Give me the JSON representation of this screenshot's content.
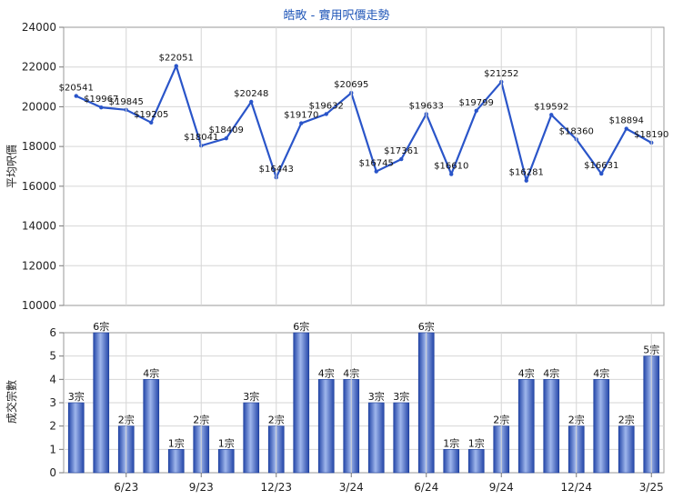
{
  "chart_data": [
    {
      "type": "line",
      "title": "皓畋 - 實用呎價走勢",
      "ylabel": "平均呎價",
      "ylim": [
        10000,
        24000
      ],
      "yticks": [
        10000,
        12000,
        14000,
        16000,
        18000,
        20000,
        22000,
        24000
      ],
      "grid": true,
      "color": "#2a55c9",
      "series": [
        {
          "values": [
            20541,
            19967,
            19845,
            19205,
            22051,
            18041,
            18409,
            20248,
            16443,
            19170,
            19632,
            20695,
            16745,
            17361,
            19633,
            16610,
            19799,
            21252,
            16281,
            19592,
            18360,
            16631,
            18894,
            18190
          ],
          "labels": [
            "$20541",
            "$19967",
            "$19845",
            "$19205",
            "$22051",
            "$18041",
            "$18409",
            "$20248",
            "$16443",
            "$19170",
            "$19632",
            "$20695",
            "$16745",
            "$17361",
            "$19633",
            "$16610",
            "$19799",
            "$21252",
            "$16281",
            "$19592",
            "$18360",
            "$16631",
            "$18894",
            "$18190"
          ]
        }
      ]
    },
    {
      "type": "bar",
      "ylabel": "成交宗數",
      "ylim": [
        0,
        6
      ],
      "yticks": [
        0,
        1,
        2,
        3,
        4,
        5,
        6
      ],
      "grid": true,
      "color": "#3560c4",
      "x_tick_labels": [
        "6/23",
        "9/23",
        "12/23",
        "3/24",
        "6/24",
        "9/24",
        "12/24",
        "3/25"
      ],
      "values": [
        3,
        6,
        2,
        4,
        1,
        2,
        1,
        3,
        2,
        6,
        4,
        4,
        3,
        3,
        6,
        1,
        1,
        2,
        4,
        4,
        2,
        4,
        2,
        5
      ],
      "labels": [
        "3宗",
        "6宗",
        "2宗",
        "4宗",
        "1宗",
        "2宗",
        "1宗",
        "3宗",
        "2宗",
        "6宗",
        "4宗",
        "4宗",
        "3宗",
        "3宗",
        "6宗",
        "1宗",
        "1宗",
        "2宗",
        "4宗",
        "4宗",
        "2宗",
        "4宗",
        "2宗",
        "5宗"
      ]
    }
  ]
}
